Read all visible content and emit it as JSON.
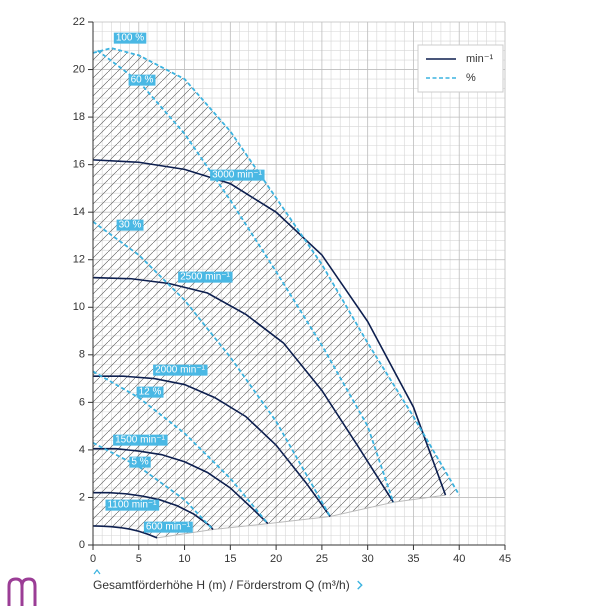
{
  "chart_data": {
    "type": "line",
    "x_label": "Gesamtförderhöhe H (m) / Förderstrom Q (m³/h)",
    "xlim": [
      0,
      45
    ],
    "xticks": [
      0,
      5,
      10,
      15,
      20,
      25,
      30,
      35,
      40,
      45
    ],
    "ylim": [
      0,
      22
    ],
    "yticks": [
      0,
      2,
      4,
      6,
      8,
      10,
      12,
      14,
      16,
      18,
      20,
      22
    ],
    "grid": true,
    "legend_position": "top-right",
    "legend": [
      {
        "name": "min⁻¹",
        "color": "#0d1f4f",
        "dashed": false
      },
      {
        "name": "%",
        "color": "#3bb3e0",
        "dashed": true
      }
    ],
    "series": [
      {
        "name": "3000 min⁻¹",
        "color": "#0d1f4f",
        "dashed": false,
        "x": [
          0,
          5,
          10,
          15,
          20,
          25,
          30,
          35,
          38.5
        ],
        "values": [
          16.2,
          16.1,
          15.8,
          15.2,
          14.0,
          12.2,
          9.4,
          5.8,
          2.1
        ]
      },
      {
        "name": "2500 min⁻¹",
        "color": "#0d1f4f",
        "dashed": false,
        "x": [
          0,
          4.2,
          8.3,
          12.5,
          16.7,
          20.8,
          25,
          29.2,
          32.8
        ],
        "values": [
          11.25,
          11.2,
          11.0,
          10.6,
          9.7,
          8.5,
          6.5,
          4.0,
          1.8
        ]
      },
      {
        "name": "2000 min⁻¹",
        "color": "#0d1f4f",
        "dashed": false,
        "x": [
          0,
          3.3,
          6.7,
          10,
          13.3,
          16.7,
          20,
          23.3,
          25.9
        ],
        "values": [
          7.1,
          7.1,
          7.0,
          6.75,
          6.2,
          5.4,
          4.2,
          2.6,
          1.2
        ]
      },
      {
        "name": "1500 min⁻¹",
        "color": "#0d1f4f",
        "dashed": false,
        "x": [
          0,
          2.5,
          5,
          7.5,
          10,
          12.5,
          15,
          17.5,
          19.1
        ],
        "values": [
          4.05,
          4.05,
          3.95,
          3.8,
          3.5,
          3.05,
          2.4,
          1.5,
          0.9
        ]
      },
      {
        "name": "1100 min⁻¹",
        "color": "#0d1f4f",
        "dashed": false,
        "x": [
          0,
          1.8,
          3.7,
          5.5,
          7.3,
          9.2,
          11,
          12.8,
          13.1
        ],
        "values": [
          2.2,
          2.2,
          2.15,
          2.05,
          1.9,
          1.65,
          1.3,
          0.8,
          0.65
        ]
      },
      {
        "name": "600 min⁻¹",
        "color": "#0d1f4f",
        "dashed": false,
        "x": [
          0,
          1,
          2,
          3,
          4,
          5,
          6,
          7
        ],
        "values": [
          0.8,
          0.79,
          0.77,
          0.73,
          0.67,
          0.58,
          0.45,
          0.3
        ]
      },
      {
        "name": "100 %",
        "color": "#3bb3e0",
        "dashed": true,
        "x": [
          0,
          2,
          5,
          10,
          15,
          20,
          25,
          30,
          35,
          40
        ],
        "values": [
          20.7,
          20.9,
          20.6,
          19.6,
          17.4,
          14.6,
          11.8,
          8.5,
          5.4,
          2.1
        ]
      },
      {
        "name": "60 %",
        "color": "#3bb3e0",
        "dashed": true,
        "x": [
          0.5,
          5,
          10,
          15,
          20,
          25,
          30,
          32.8
        ],
        "values": [
          20.8,
          19.5,
          17.3,
          14.5,
          11.5,
          8.4,
          5.0,
          1.8
        ]
      },
      {
        "name": "30 %",
        "color": "#3bb3e0",
        "dashed": true,
        "x": [
          0,
          5,
          10,
          15,
          20,
          25.9
        ],
        "values": [
          13.6,
          12.2,
          10.3,
          7.9,
          5.2,
          1.2
        ]
      },
      {
        "name": "12 %",
        "color": "#3bb3e0",
        "dashed": true,
        "x": [
          0,
          5,
          10,
          15,
          19.1
        ],
        "values": [
          7.3,
          6.2,
          4.7,
          2.8,
          0.9
        ]
      },
      {
        "name": "5 %",
        "color": "#3bb3e0",
        "dashed": true,
        "x": [
          0,
          5,
          10,
          13.1
        ],
        "values": [
          4.3,
          3.3,
          1.9,
          0.65
        ]
      }
    ]
  }
}
